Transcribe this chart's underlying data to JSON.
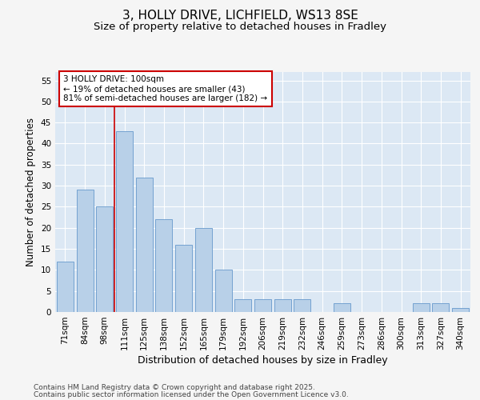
{
  "title_line1": "3, HOLLY DRIVE, LICHFIELD, WS13 8SE",
  "title_line2": "Size of property relative to detached houses in Fradley",
  "xlabel": "Distribution of detached houses by size in Fradley",
  "ylabel": "Number of detached properties",
  "categories": [
    "71sqm",
    "84sqm",
    "98sqm",
    "111sqm",
    "125sqm",
    "138sqm",
    "152sqm",
    "165sqm",
    "179sqm",
    "192sqm",
    "206sqm",
    "219sqm",
    "232sqm",
    "246sqm",
    "259sqm",
    "273sqm",
    "286sqm",
    "300sqm",
    "313sqm",
    "327sqm",
    "340sqm"
  ],
  "values": [
    12,
    29,
    25,
    43,
    32,
    22,
    16,
    20,
    10,
    3,
    3,
    3,
    3,
    0,
    2,
    0,
    0,
    0,
    2,
    2,
    1
  ],
  "bar_color": "#b8d0e8",
  "bar_edge_color": "#6699cc",
  "bar_edge_width": 0.6,
  "vline_index": 2,
  "vline_color": "#cc0000",
  "annotation_line1": "3 HOLLY DRIVE: 100sqm",
  "annotation_line2": "← 19% of detached houses are smaller (43)",
  "annotation_line3": "81% of semi-detached houses are larger (182) →",
  "annotation_box_edge_color": "#cc0000",
  "ylim": [
    0,
    57
  ],
  "yticks": [
    0,
    5,
    10,
    15,
    20,
    25,
    30,
    35,
    40,
    45,
    50,
    55
  ],
  "background_color": "#f5f5f5",
  "plot_bg_color": "#dce8f4",
  "grid_color": "#ffffff",
  "footer_line1": "Contains HM Land Registry data © Crown copyright and database right 2025.",
  "footer_line2": "Contains public sector information licensed under the Open Government Licence v3.0.",
  "title_fontsize": 11,
  "subtitle_fontsize": 9.5,
  "ylabel_fontsize": 8.5,
  "xlabel_fontsize": 9,
  "tick_fontsize": 7.5,
  "annotation_fontsize": 7.5,
  "footer_fontsize": 6.5
}
